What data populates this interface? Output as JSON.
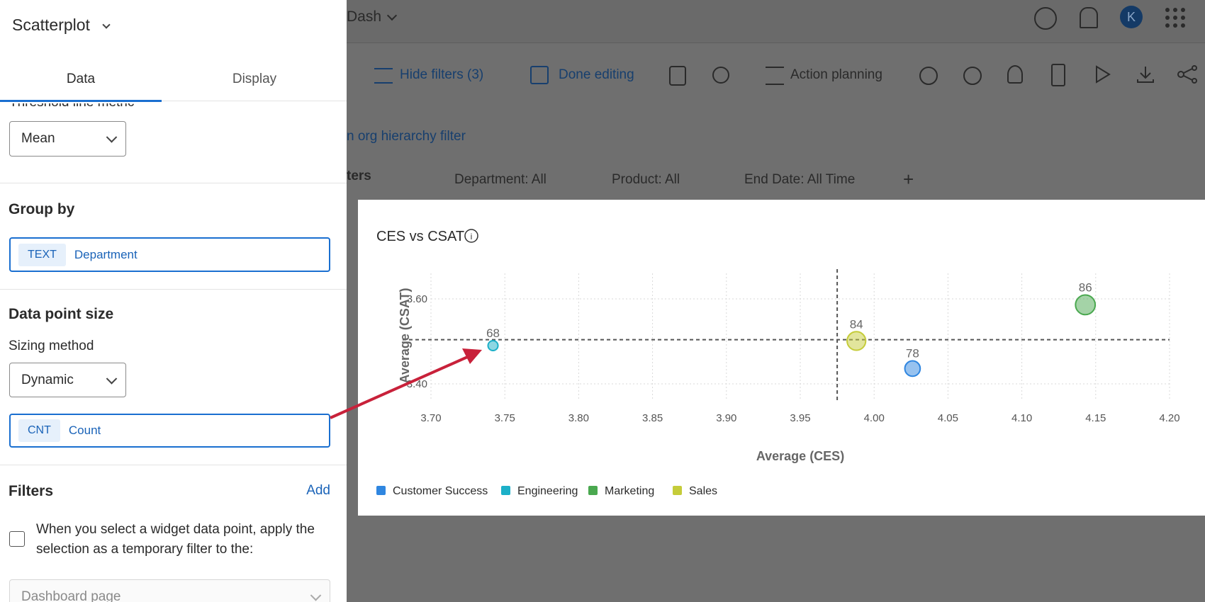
{
  "app": {
    "title": "Dash",
    "avatar": "K",
    "toolbar": [
      "Hide filters (3)",
      "Done editing",
      "Action planning"
    ],
    "hierarchy_link": "n org hierarchy filter",
    "filters_label": "ters",
    "filters": [
      "Department: All",
      "Product: All",
      "End Date: All Time"
    ]
  },
  "panel": {
    "title": "Scatterplot",
    "tabs": [
      "Data",
      "Display"
    ],
    "threshold_label": "Threshold line metric",
    "threshold_value": "Mean",
    "group_by": {
      "heading": "Group by",
      "tag": "TEXT",
      "field": "Department"
    },
    "data_point_size": {
      "heading": "Data point size",
      "sizing_label": "Sizing method",
      "sizing_value": "Dynamic",
      "tag": "CNT",
      "field": "Count"
    },
    "filters": {
      "heading": "Filters",
      "action": "Add",
      "checkbox_text": "When you select a widget data point, apply the selection as a temporary filter to the:",
      "target": "Dashboard page"
    }
  },
  "chart_data": {
    "type": "scatter",
    "title": "CES vs CSAT",
    "x_label": "Average (CES)",
    "y_label": "Average (CSAT)",
    "xlim": [
      3.7,
      4.2
    ],
    "ylim": [
      3.36,
      3.66
    ],
    "xticks": [
      {
        "value": 3.7,
        "label": "3.70"
      },
      {
        "value": 3.75,
        "label": "3.75"
      },
      {
        "value": 3.8,
        "label": "3.80"
      },
      {
        "value": 3.85,
        "label": "3.85"
      },
      {
        "value": 3.9,
        "label": "3.90"
      },
      {
        "value": 3.95,
        "label": "3.95"
      },
      {
        "value": 4.0,
        "label": "4.00"
      },
      {
        "value": 4.05,
        "label": "4.05"
      },
      {
        "value": 4.1,
        "label": "4.10"
      },
      {
        "value": 4.15,
        "label": "4.15"
      },
      {
        "value": 4.2,
        "label": "4.20"
      }
    ],
    "yticks": [
      {
        "value": 3.4,
        "label": "3.40"
      },
      {
        "value": 3.6,
        "label": "3.60"
      }
    ],
    "grid": true,
    "threshold_x": 3.975,
    "threshold_y": 3.504,
    "series": [
      {
        "name": "Customer Success",
        "color": "#2f86e0",
        "x": [
          4.026
        ],
        "values": [
          3.436
        ],
        "sizes": [
          78
        ]
      },
      {
        "name": "Engineering",
        "color": "#1cb0c8",
        "x": [
          3.742
        ],
        "values": [
          3.49
        ],
        "sizes": [
          68
        ]
      },
      {
        "name": "Marketing",
        "color": "#4aa84f",
        "x": [
          4.143
        ],
        "values": [
          3.586
        ],
        "sizes": [
          86
        ]
      },
      {
        "name": "Sales",
        "color": "#c5cc3a",
        "x": [
          3.988
        ],
        "values": [
          3.501
        ],
        "sizes": [
          84
        ]
      }
    ]
  }
}
